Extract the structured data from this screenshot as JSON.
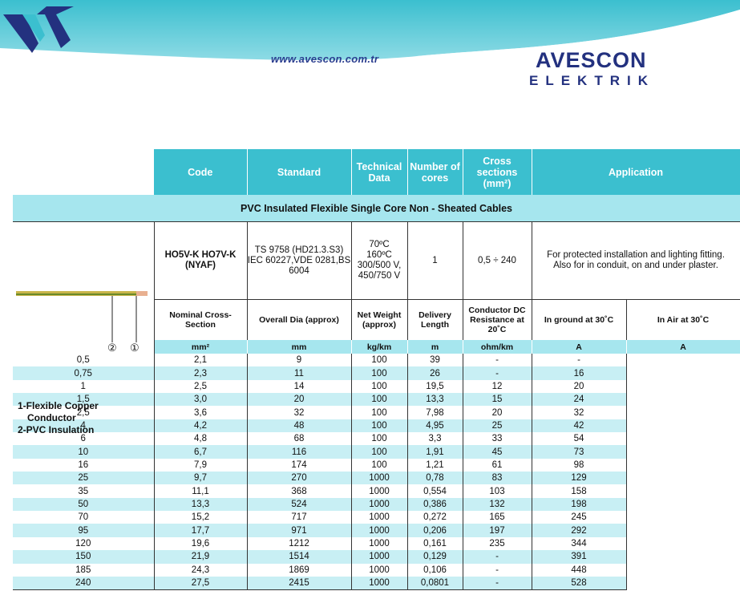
{
  "header": {
    "url": "www.avescon.com.tr",
    "brand": "AVESCON",
    "brand_sub": "ELEKTRIK",
    "colors": {
      "band": "#3bbfcf",
      "brand": "#23317f"
    }
  },
  "table": {
    "headers": [
      "Code",
      "Standard",
      "Technical Data",
      "Number of cores",
      "Cross sections (mm²)",
      "Application"
    ],
    "section_title": "PVC Insulated Flexible Single Core Non - Sheated Cables",
    "spec": {
      "code": "HO5V-K HO7V-K (NYAF)",
      "standard": "TS 9758 (HD21.3.S3) IEC 60227,VDE 0281,BS 6004",
      "technical": [
        "70ºC",
        "160ºC",
        "300/500 V,",
        "450/750 V"
      ],
      "cores": "1",
      "cross": "0,5 ÷ 240",
      "application": "For protected installation and lighting fitting. Also for in conduit, on and under plaster."
    },
    "sub_headers": [
      "Nominal Cross-Section",
      "Overall Dia (approx)",
      "Net Weight (approx)",
      "Delivery Length",
      "Conductor DC Resistance at 20˚C",
      "In ground at 30˚C",
      "In Air at 30˚C"
    ],
    "units": [
      "mm²",
      "mm",
      "kg/km",
      "m",
      "ohm/km",
      "A",
      "A"
    ],
    "rows": [
      [
        "0,5",
        "2,1",
        "9",
        "100",
        "39",
        "-",
        "-"
      ],
      [
        "0,75",
        "2,3",
        "11",
        "100",
        "26",
        "-",
        "16"
      ],
      [
        "1",
        "2,5",
        "14",
        "100",
        "19,5",
        "12",
        "20"
      ],
      [
        "1,5",
        "3,0",
        "20",
        "100",
        "13,3",
        "15",
        "24"
      ],
      [
        "2,5",
        "3,6",
        "32",
        "100",
        "7,98",
        "20",
        "32"
      ],
      [
        "4",
        "4,2",
        "48",
        "100",
        "4,95",
        "25",
        "42"
      ],
      [
        "6",
        "4,8",
        "68",
        "100",
        "3,3",
        "33",
        "54"
      ],
      [
        "10",
        "6,7",
        "116",
        "100",
        "1,91",
        "45",
        "73"
      ],
      [
        "16",
        "7,9",
        "174",
        "100",
        "1,21",
        "61",
        "98"
      ],
      [
        "25",
        "9,7",
        "270",
        "1000",
        "0,78",
        "83",
        "129"
      ],
      [
        "35",
        "11,1",
        "368",
        "1000",
        "0,554",
        "103",
        "158"
      ],
      [
        "50",
        "13,3",
        "524",
        "1000",
        "0,386",
        "132",
        "198"
      ],
      [
        "70",
        "15,2",
        "717",
        "1000",
        "0,272",
        "165",
        "245"
      ],
      [
        "95",
        "17,7",
        "971",
        "1000",
        "0,206",
        "197",
        "292"
      ],
      [
        "120",
        "19,6",
        "1212",
        "1000",
        "0,161",
        "235",
        "344"
      ],
      [
        "150",
        "21,9",
        "1514",
        "1000",
        "0,129",
        "-",
        "391"
      ],
      [
        "185",
        "24,3",
        "1869",
        "1000",
        "0,106",
        "-",
        "448"
      ],
      [
        "240",
        "27,5",
        "2415",
        "1000",
        "0,0801",
        "-",
        "528"
      ]
    ]
  },
  "legend": {
    "markers": [
      "②",
      "①"
    ],
    "items": [
      "1-Flexible Copper",
      "Conductor",
      "2-PVC Insulation"
    ]
  }
}
